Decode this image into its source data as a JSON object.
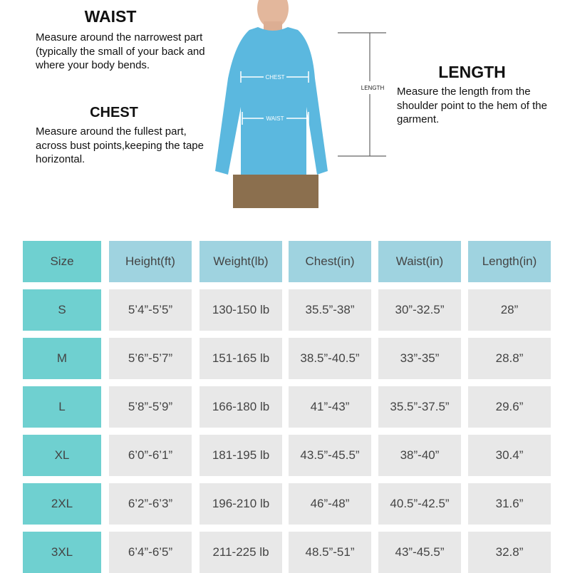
{
  "guide": {
    "waist": {
      "title": "WAIST",
      "text": "Measure around the narrowest part (typically the small of your back and where your body bends."
    },
    "chest": {
      "title": "CHEST",
      "text": "Measure around the fullest part, across bust points,keeping the tape horizontal."
    },
    "length": {
      "title": "LENGTH",
      "text": "Measure the length from the shoulder point to the hem of the garment."
    },
    "figure_labels": {
      "chest": "CHEST",
      "waist": "WAIST",
      "length": "LENGTH"
    },
    "shirt_color": "#5bb8df"
  },
  "table": {
    "headers": [
      "Size",
      "Height(ft)",
      "Weight(lb)",
      "Chest(in)",
      "Waist(in)",
      "Length(in)"
    ],
    "rows": [
      [
        "S",
        "5’4”-5’5”",
        "130-150 lb",
        "35.5”-38”",
        "30”-32.5”",
        "28”"
      ],
      [
        "M",
        "5’6”-5’7”",
        "151-165 lb",
        "38.5”-40.5”",
        "33”-35”",
        "28.8”"
      ],
      [
        "L",
        "5’8”-5’9”",
        "166-180 lb",
        "41”-43”",
        "35.5”-37.5”",
        "29.6”"
      ],
      [
        "XL",
        "6’0”-6’1”",
        "181-195 lb",
        "43.5”-45.5”",
        "38”-40”",
        "30.4”"
      ],
      [
        "2XL",
        "6’2”-6’3”",
        "196-210 lb",
        "46”-48”",
        "40.5”-42.5”",
        "31.6”"
      ],
      [
        "3XL",
        "6’4”-6’5”",
        "211-225 lb",
        "48.5”-51”",
        "43”-45.5”",
        "32.8”"
      ]
    ],
    "colors": {
      "size_column": "#6fd0d0",
      "header": "#9fd3e0",
      "body": "#e8e8e8"
    }
  }
}
